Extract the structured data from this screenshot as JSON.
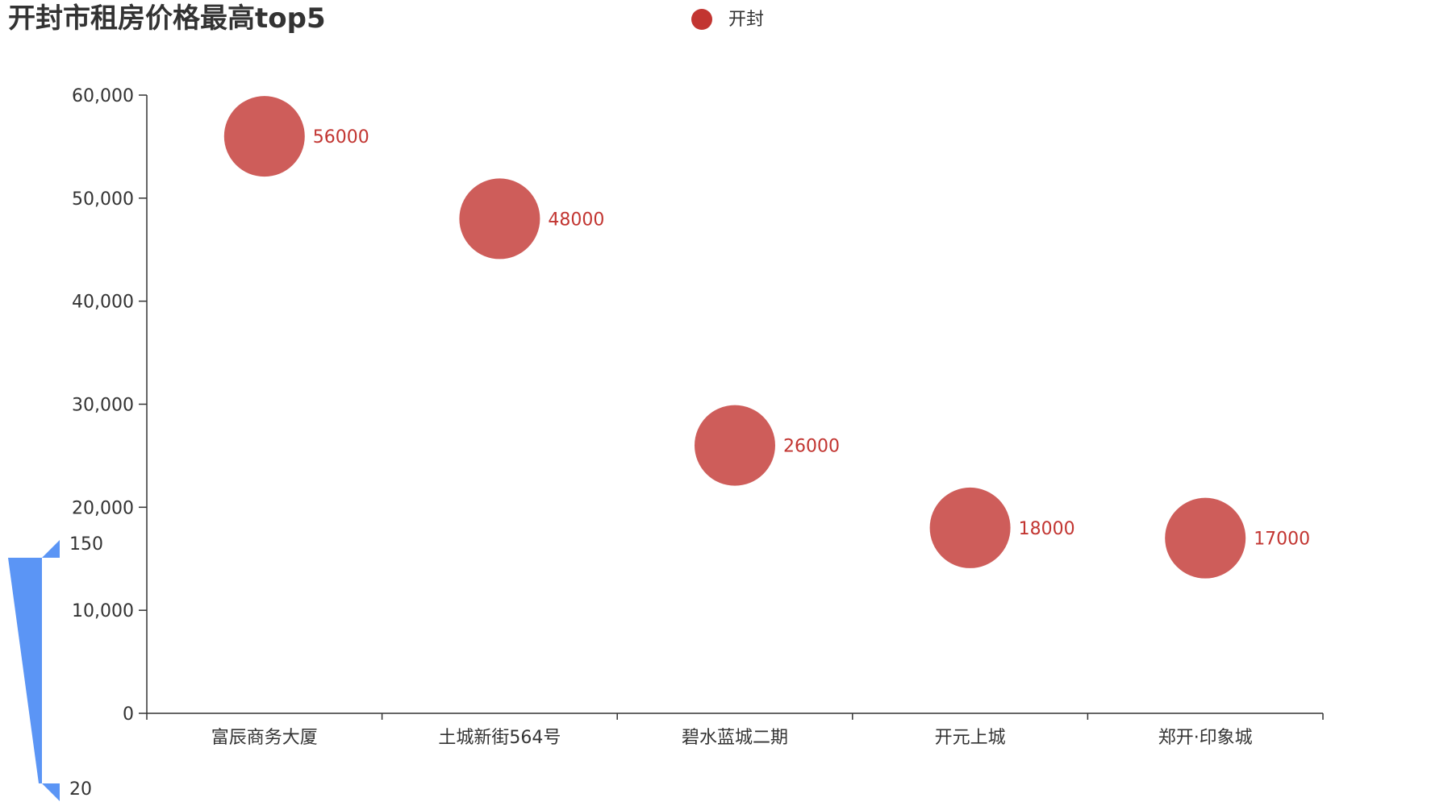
{
  "chart_data": {
    "type": "scatter",
    "title": "开封市租房价格最高top5",
    "xlabel": "",
    "ylabel": "",
    "categories": [
      "富辰商务大厦",
      "土城新街564号",
      "碧水蓝城二期",
      "开元上城",
      "郑开·印象城"
    ],
    "series": [
      {
        "name": "开封",
        "values": [
          56000,
          48000,
          26000,
          18000,
          17000
        ]
      }
    ],
    "ylim": [
      0,
      60000
    ],
    "y_ticks": [
      0,
      10000,
      20000,
      30000,
      40000,
      50000,
      60000
    ],
    "y_tick_labels": [
      "0",
      "10,000",
      "20,000",
      "30,000",
      "40,000",
      "50,000",
      "60,000"
    ],
    "data_labels": [
      "56000",
      "48000",
      "26000",
      "18000",
      "17000"
    ],
    "legend": {
      "position": "top-center"
    },
    "grid": false,
    "visual_map": {
      "type": "size",
      "max_label": "150",
      "min_label": "20",
      "max": 150,
      "min": 20,
      "color": "#5b95f5"
    },
    "colors": {
      "series": "#c23531",
      "axis": "#333333",
      "visual_map": "#5b95f5"
    }
  }
}
